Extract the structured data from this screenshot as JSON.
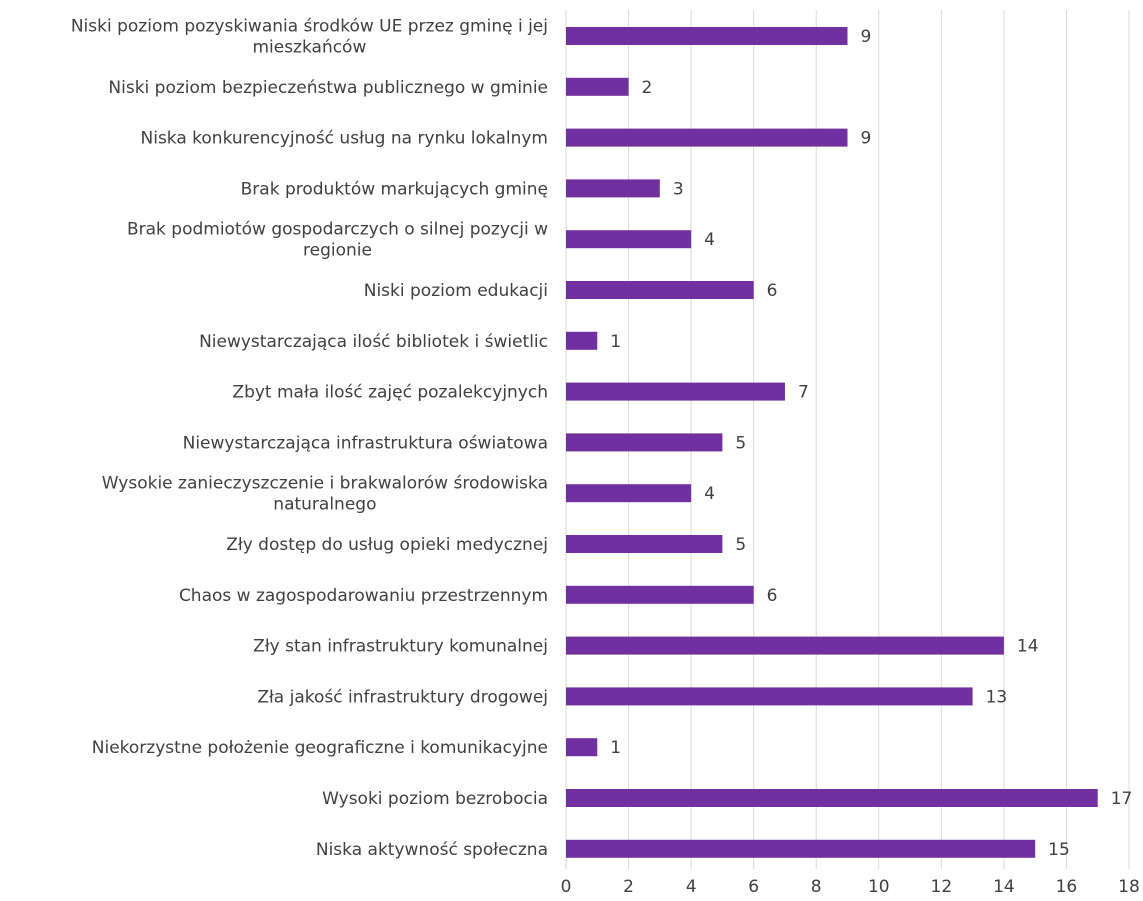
{
  "chart_data": {
    "type": "bar",
    "orientation": "horizontal",
    "title": "",
    "xlabel": "",
    "ylabel": "",
    "xlim": [
      0,
      18
    ],
    "x_ticks": [
      "0",
      "2",
      "4",
      "6",
      "8",
      "10",
      "12",
      "14",
      "16",
      "18"
    ],
    "grid": true,
    "bar_color": "#7030a0",
    "grid_color": "#d9d9d9",
    "categories": [
      [
        "Niski poziom pozyskiwania środków UE przez gminę i jej",
        "mieszkańców"
      ],
      [
        "Niski poziom bezpieczeństwa publicznego w gminie"
      ],
      [
        "Niska konkurencyjność usług na rynku lokalnym"
      ],
      [
        "Brak produktów markujących gminę"
      ],
      [
        "Brak podmiotów gospodarczych o silnej pozycji w",
        "regionie"
      ],
      [
        "Niski poziom edukacji"
      ],
      [
        "Niewystarczająca ilość bibliotek i świetlic"
      ],
      [
        "Zbyt mała ilość zajęć pozalekcyjnych"
      ],
      [
        "Niewystarczająca infrastruktura oświatowa"
      ],
      [
        "Wysokie zanieczyszczenie i brakwalorów środowiska",
        "naturalnego"
      ],
      [
        "Zły dostęp do usług opieki medycznej"
      ],
      [
        "Chaos w zagospodarowaniu przestrzennym"
      ],
      [
        "Zły stan infrastruktury komunalnej"
      ],
      [
        "Zła jakość infrastruktury drogowej"
      ],
      [
        "Niekorzystne położenie geograficzne i komunikacyjne"
      ],
      [
        "Wysoki poziom bezrobocia"
      ],
      [
        "Niska aktywność społeczna"
      ]
    ],
    "values": [
      9,
      2,
      9,
      3,
      4,
      6,
      1,
      7,
      5,
      4,
      5,
      6,
      14,
      13,
      1,
      17,
      15
    ],
    "data_labels": [
      "9",
      "2",
      "9",
      "3",
      "4",
      "6",
      "1",
      "7",
      "5",
      "4",
      "5",
      "6",
      "14",
      "13",
      "1",
      "17",
      "15"
    ]
  }
}
